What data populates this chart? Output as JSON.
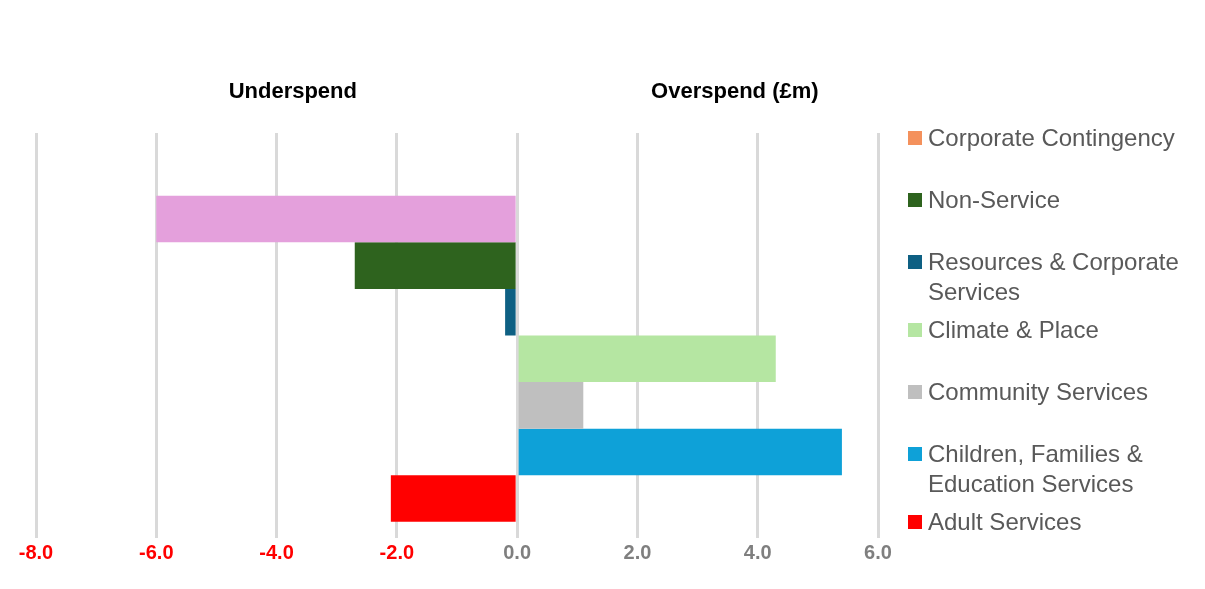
{
  "chart_data": {
    "type": "bar",
    "orientation": "horizontal",
    "categories": [
      null
    ],
    "annotations": [
      "Underspend",
      "Overspend (£m)"
    ],
    "series": [
      {
        "name": "Corporate Contingency",
        "color": "#f4915c",
        "values": [
          null
        ]
      },
      {
        "color": "#e4a0dc",
        "values": [
          -6.0
        ]
      },
      {
        "name": "Non-Service",
        "color": "#2e631e",
        "values": [
          -2.7
        ]
      },
      {
        "name": "Resources & Corporate Services",
        "color": "#0e6083",
        "values": [
          -0.2
        ]
      },
      {
        "name": "Climate & Place",
        "color": "#b5e6a2",
        "values": [
          4.3
        ]
      },
      {
        "name": "Community Services",
        "color": "#bfbfbf",
        "values": [
          1.1
        ]
      },
      {
        "name": "Children, Families & Education Services",
        "color": "#0ea1d8",
        "values": [
          5.4
        ]
      },
      {
        "name": "Adult Services",
        "color": "#ff0000",
        "values": [
          -2.1
        ]
      }
    ],
    "xlim": [
      -8,
      6
    ],
    "xticks": [
      {
        "value": -8,
        "label": "-8.0"
      },
      {
        "value": -6,
        "label": "-6.0"
      },
      {
        "value": -4,
        "label": "-4.0"
      },
      {
        "value": -2,
        "label": "-2.0"
      },
      {
        "value": 0,
        "label": "0.0"
      },
      {
        "value": 2,
        "label": "2.0"
      },
      {
        "value": 4,
        "label": "4.0"
      },
      {
        "value": 6,
        "label": "6.0"
      }
    ],
    "grid": "x",
    "legend": "right"
  }
}
